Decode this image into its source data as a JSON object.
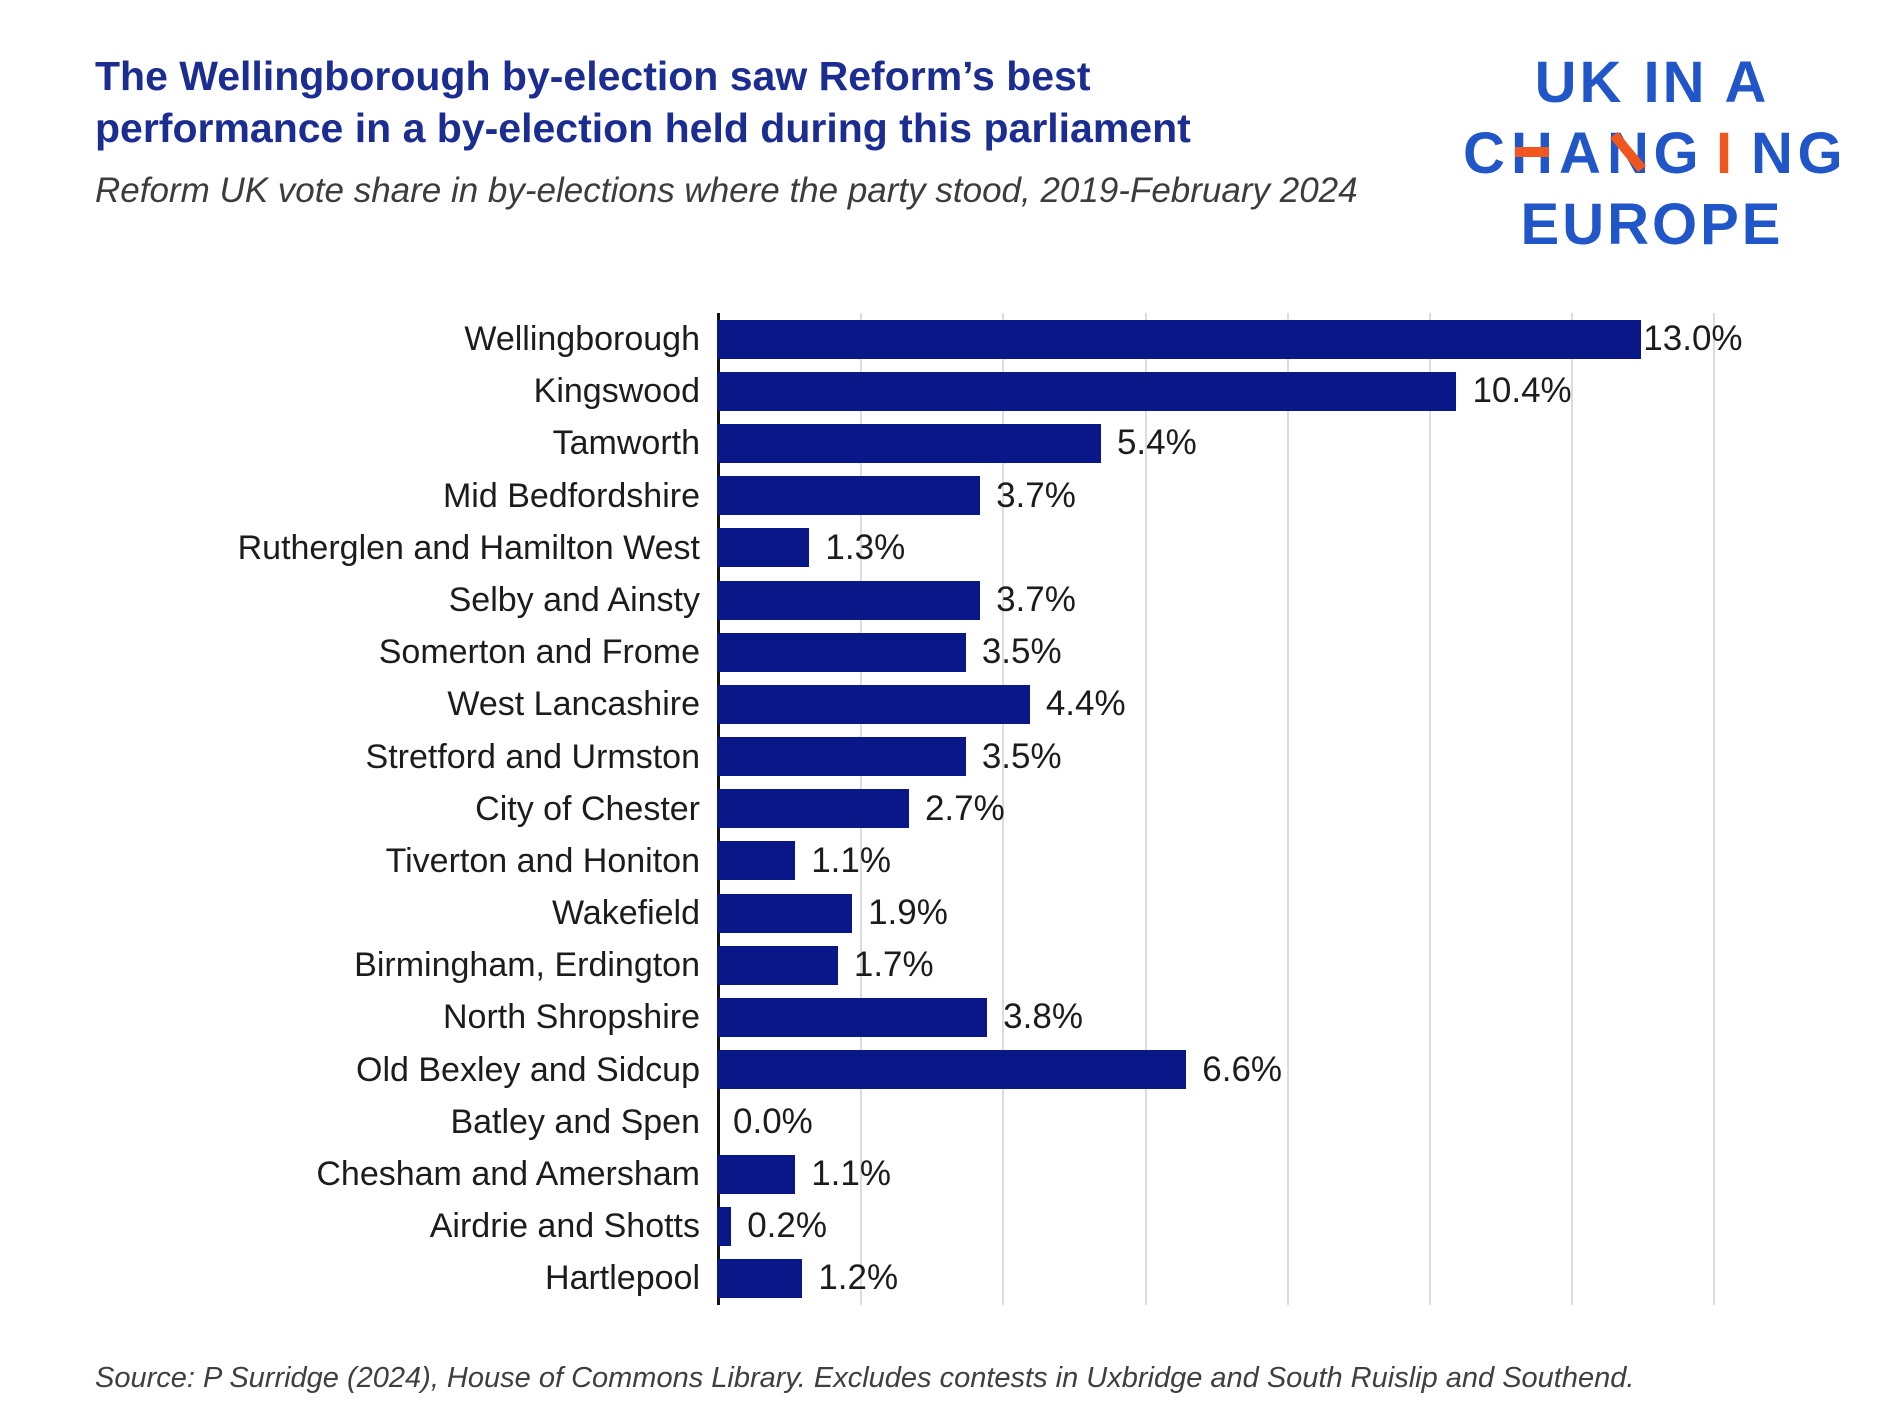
{
  "header": {
    "title_line1": "The Wellingborough by-election saw Reform’s best",
    "title_line2": "performance in a by-election held during this parliament",
    "subtitle": "Reform UK vote share in by-elections where the party stood, 2019-February 2024",
    "logo": {
      "line1": "UK IN A",
      "line2": "CHANGING",
      "line3": "EUROPE",
      "blue": "#2156c8",
      "orange": "#f0571f"
    }
  },
  "chart_data": {
    "type": "bar",
    "orientation": "horizontal",
    "title": "The Wellingborough by-election saw Reform’s best performance in a by-election held during this parliament",
    "subtitle": "Reform UK vote share in by-elections where the party stood, 2019-February 2024",
    "categories": [
      "Wellingborough",
      "Kingswood",
      "Tamworth",
      "Mid Bedfordshire",
      "Rutherglen and Hamilton West",
      "Selby and Ainsty",
      "Somerton and Frome",
      "West Lancashire",
      "Stretford and Urmston",
      "City of Chester",
      "Tiverton and Honiton",
      "Wakefield",
      "Birmingham, Erdington",
      "North Shropshire",
      "Old Bexley and Sidcup",
      "Batley and Spen",
      "Chesham and Amersham",
      "Airdrie and Shotts",
      "Hartlepool"
    ],
    "values": [
      13.0,
      10.4,
      5.4,
      3.7,
      1.3,
      3.7,
      3.5,
      4.4,
      3.5,
      2.7,
      1.1,
      1.9,
      1.7,
      3.8,
      6.6,
      0.0,
      1.1,
      0.2,
      1.2
    ],
    "value_labels": [
      "13.0%",
      "10.4%",
      "5.4%",
      "3.7%",
      "1.3%",
      "3.7%",
      "3.5%",
      "4.4%",
      "3.5%",
      "2.7%",
      "1.1%",
      "1.9%",
      "1.7%",
      "3.8%",
      "6.6%",
      "0.0%",
      "1.1%",
      "0.2%",
      "1.2%"
    ],
    "xlabel": "",
    "ylabel": "",
    "xlim": [
      0,
      15
    ],
    "gridline_ticks_percent": [
      2,
      4,
      6,
      8,
      10,
      12,
      14
    ],
    "grid": true,
    "legend": false,
    "bar_color": "#0a1789",
    "gridline_color": "#dcdcdc",
    "axis_line_color": "#121212"
  },
  "footer": {
    "source": "Source: P Surridge (2024), House of Commons Library. Excludes contests in Uxbridge and South Ruislip and Southend."
  }
}
